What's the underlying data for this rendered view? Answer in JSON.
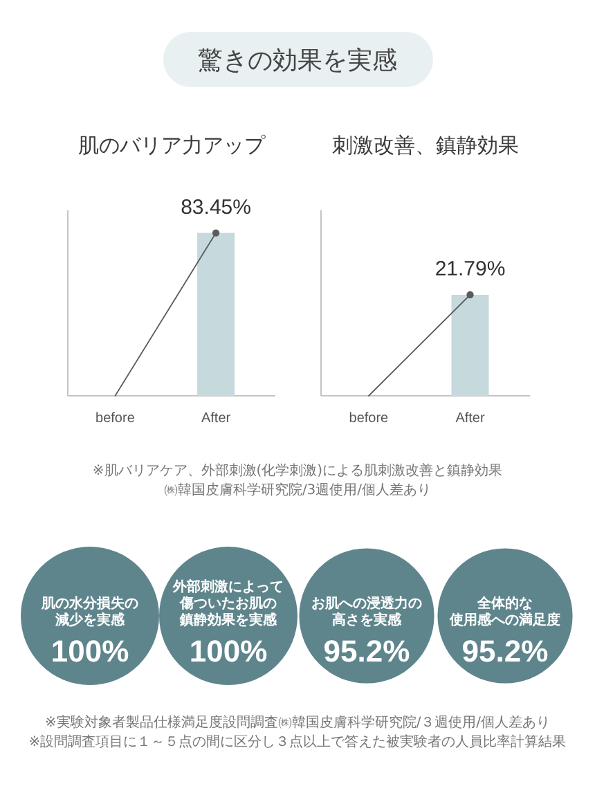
{
  "chart_data": [
    {
      "type": "other",
      "title": "驚きの効果を実感"
    },
    {
      "type": "bar",
      "title": "肌のバリア力アップ",
      "categories": [
        "before",
        "After"
      ],
      "ylim": [
        0,
        95
      ],
      "tick_labels": "x",
      "marker": "circle",
      "series": [
        {
          "type": "bar",
          "color": "#c6d9dd",
          "values": [
            null,
            83.45
          ],
          "value_labels": [
            null,
            "83.45%"
          ]
        },
        {
          "type": "line",
          "color": "#5c5c5c",
          "values": [
            0,
            83.45
          ]
        }
      ]
    },
    {
      "type": "bar",
      "title": "刺激改善、鎮静効果",
      "categories": [
        "before",
        "After"
      ],
      "ylim": [
        0,
        40
      ],
      "tick_labels": "x",
      "marker": "circle",
      "series": [
        {
          "type": "bar",
          "color": "#c6d9dd",
          "values": [
            null,
            21.79
          ],
          "value_labels": [
            null,
            "21.79%"
          ]
        },
        {
          "type": "line",
          "color": "#5c5c5c",
          "values": [
            0,
            21.79
          ]
        }
      ],
      "annotations": [
        "※肌バリアケア、外部刺激(化学刺激)による肌刺激改善と鎮静効果",
        "㈱韓国皮膚科学研究院/3週使用/個人差あり"
      ]
    },
    {
      "type": "other",
      "categories": [
        "肌の水分損失の減少を実感",
        "外部刺激によって傷ついたお肌の鎮静効果を実感",
        "お肌への浸透力の高さを実感",
        "全体的な使用感への満足度"
      ],
      "values": [
        100,
        100,
        95.2,
        95.2
      ],
      "value_labels": [
        "100%",
        "100%",
        "95.2%",
        "95.2%"
      ],
      "color": "#5f858c",
      "annotations": [
        "※実験対象者製品仕様満足度設問調査㈱韓国皮膚科学研究院/３週使用/個人差あり",
        "※設問調査項目に１～５点の間に区分し３点以上で答えた被実験者の人員比率計算結果"
      ]
    }
  ]
}
